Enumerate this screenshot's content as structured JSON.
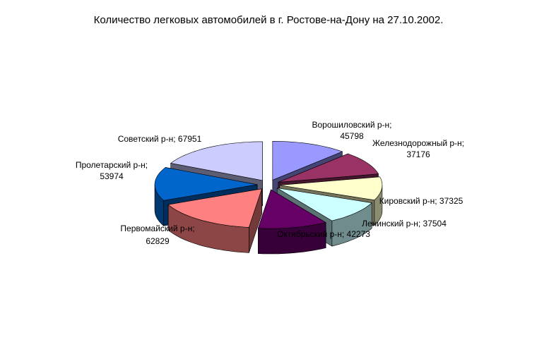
{
  "chart_data": {
    "type": "pie",
    "title": "Количество легковых автомобилей в г. Ростове-на-Дону на 27.10.2002.",
    "three_d": true,
    "exploded": true,
    "legend": "none",
    "slices": [
      {
        "name": "Ворошиловский р-н",
        "value": 45798,
        "label": [
          "Ворошиловский р-н;",
          "45798"
        ],
        "color": "#9999ff"
      },
      {
        "name": "Железнодорожный р-н",
        "value": 37176,
        "label": [
          "Железнодорожный р-н;",
          "37176"
        ],
        "color": "#993366"
      },
      {
        "name": "Кировский р-н",
        "value": 37325,
        "label": [
          "Кировский р-н; 37325"
        ],
        "color": "#ffffcc"
      },
      {
        "name": "Ленинский р-н",
        "value": 37504,
        "label": [
          "Ленинский р-н; 37504"
        ],
        "color": "#ccffff"
      },
      {
        "name": "Октябрьский р-н",
        "value": 42273,
        "label": [
          "Октябрьский р-н; 42273"
        ],
        "color": "#660066"
      },
      {
        "name": "Первомайский р-н",
        "value": 62829,
        "label": [
          "Первомайский р-н;",
          "62829"
        ],
        "color": "#ff8080"
      },
      {
        "name": "Пролетарский р-н",
        "value": 53974,
        "label": [
          "Пролетарский р-н;",
          "53974"
        ],
        "color": "#0066cc"
      },
      {
        "name": "Советский р-н",
        "value": 67951,
        "label": [
          "Советский р-н; 67951"
        ],
        "color": "#ccccff"
      }
    ]
  }
}
